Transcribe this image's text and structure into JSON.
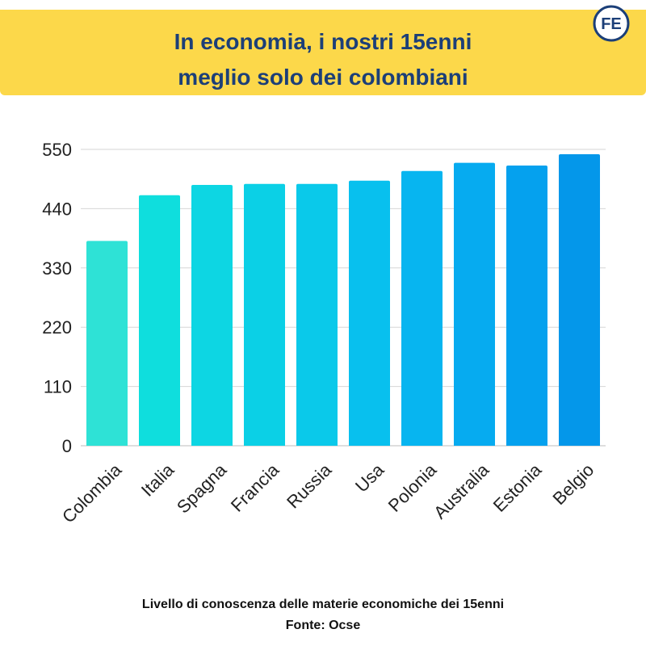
{
  "header": {
    "title_line1": "In economia, i nostri 15enni",
    "title_line2": "meglio solo dei colombiani",
    "logo_text": "FE",
    "background_color": "#fcd84a",
    "title_color": "#1c3f78"
  },
  "chart_data": {
    "type": "bar",
    "categories": [
      "Colombia",
      "Italia",
      "Spagna",
      "Francia",
      "Russia",
      "Usa",
      "Polonia",
      "Australia",
      "Estonia",
      "Belgio"
    ],
    "values": [
      380,
      465,
      484,
      486,
      486,
      492,
      510,
      525,
      520,
      541
    ],
    "ylim": [
      0,
      550
    ],
    "yticks": [
      0,
      110,
      220,
      330,
      440,
      550
    ],
    "grid": true,
    "bar_colors": [
      "#2ee2d6",
      "#0fdedd",
      "#0dd6e3",
      "#0bd0e6",
      "#0ac9ea",
      "#08c0ee",
      "#07b5f0",
      "#06abf0",
      "#05a1ee",
      "#0497ea"
    ]
  },
  "footer": {
    "line1": "Livello di conoscenza delle materie economiche dei 15enni",
    "line2": "Fonte: Ocse"
  }
}
